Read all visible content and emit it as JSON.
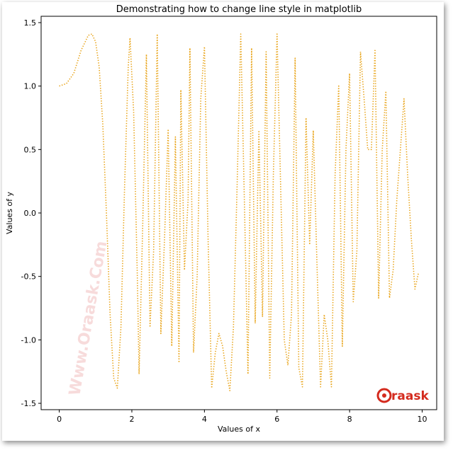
{
  "chart_data": {
    "type": "line",
    "title": "Demonstrating how to change line style in matplotlib",
    "xlabel": "Values of x",
    "ylabel": "Values of y",
    "xlim": [
      -0.5,
      10.4
    ],
    "ylim": [
      -1.55,
      1.55
    ],
    "x_ticks": [
      0,
      2,
      4,
      6,
      8,
      10
    ],
    "y_ticks": [
      -1.5,
      -1.0,
      -0.5,
      0.0,
      0.5,
      1.0,
      1.5
    ],
    "x_tick_labels": [
      "0",
      "2",
      "4",
      "6",
      "8",
      "10"
    ],
    "y_tick_labels": [
      "-1.5",
      "-1.0",
      "-0.5",
      "0.0",
      "0.5",
      "1.0",
      "1.5"
    ],
    "line_style": "dotted",
    "line_color": "#e8a317",
    "grid": false,
    "legend": "none",
    "series": [
      {
        "x": [
          0,
          0.2,
          0.4,
          0.6,
          0.8,
          0.9,
          1.0,
          1.1,
          1.2,
          1.3,
          1.4,
          1.5,
          1.6,
          1.7,
          1.8,
          1.9,
          1.95,
          2.05,
          2.15,
          2.2,
          2.3,
          2.4,
          2.5,
          2.6,
          2.7,
          2.8,
          2.9,
          3.0,
          3.1,
          3.2,
          3.3,
          3.35,
          3.45,
          3.55,
          3.6,
          3.7,
          3.8,
          3.9,
          4.0,
          4.1,
          4.2,
          4.3,
          4.4,
          4.5,
          4.6,
          4.7,
          4.8,
          4.9,
          5.0,
          5.1,
          5.2,
          5.3,
          5.4,
          5.5,
          5.6,
          5.7,
          5.8,
          5.9,
          6.0,
          6.1,
          6.2,
          6.3,
          6.4,
          6.5,
          6.6,
          6.7,
          6.8,
          6.9,
          7.0,
          7.1,
          7.2,
          7.3,
          7.4,
          7.5,
          7.6,
          7.7,
          7.8,
          7.9,
          8.0,
          8.1,
          8.2,
          8.3,
          8.4,
          8.5,
          8.6,
          8.7,
          8.8,
          8.9,
          9.0,
          9.1,
          9.2,
          9.3,
          9.4,
          9.5,
          9.6,
          9.7,
          9.8,
          9.9
        ],
        "y": [
          1.0,
          1.02,
          1.1,
          1.28,
          1.4,
          1.41,
          1.35,
          1.15,
          0.7,
          0.0,
          -0.8,
          -1.3,
          -1.38,
          -0.9,
          0.2,
          1.15,
          1.38,
          0.8,
          -0.5,
          -1.27,
          -0.1,
          1.25,
          -0.9,
          -0.3,
          1.41,
          -0.95,
          -0.2,
          0.66,
          -1.05,
          0.6,
          -1.18,
          0.97,
          -0.45,
          0.1,
          1.3,
          -1.1,
          -0.5,
          0.9,
          1.31,
          -0.2,
          -1.38,
          -1.1,
          -0.95,
          -1.05,
          -1.25,
          -1.4,
          -0.9,
          0.2,
          1.41,
          0.1,
          -1.27,
          1.3,
          -0.87,
          0.65,
          -0.82,
          1.27,
          -1.3,
          0.3,
          1.41,
          0.2,
          -1.0,
          -1.2,
          -0.8,
          1.22,
          -1.22,
          -1.37,
          0.75,
          -0.25,
          0.65,
          -0.4,
          -1.37,
          -0.8,
          -1.0,
          -1.37,
          0.3,
          1.01,
          -1.05,
          0.5,
          1.1,
          -0.7,
          -0.3,
          1.27,
          0.9,
          0.5,
          0.5,
          1.29,
          -0.67,
          0.5,
          0.96,
          -0.67,
          -0.45,
          0.1,
          0.5,
          0.9,
          0.3,
          -0.2,
          -0.6,
          -0.47
        ]
      }
    ]
  },
  "watermark": {
    "text": "Www.Oraask.Com",
    "logo_text": "raask",
    "color": "#d42b1e"
  }
}
